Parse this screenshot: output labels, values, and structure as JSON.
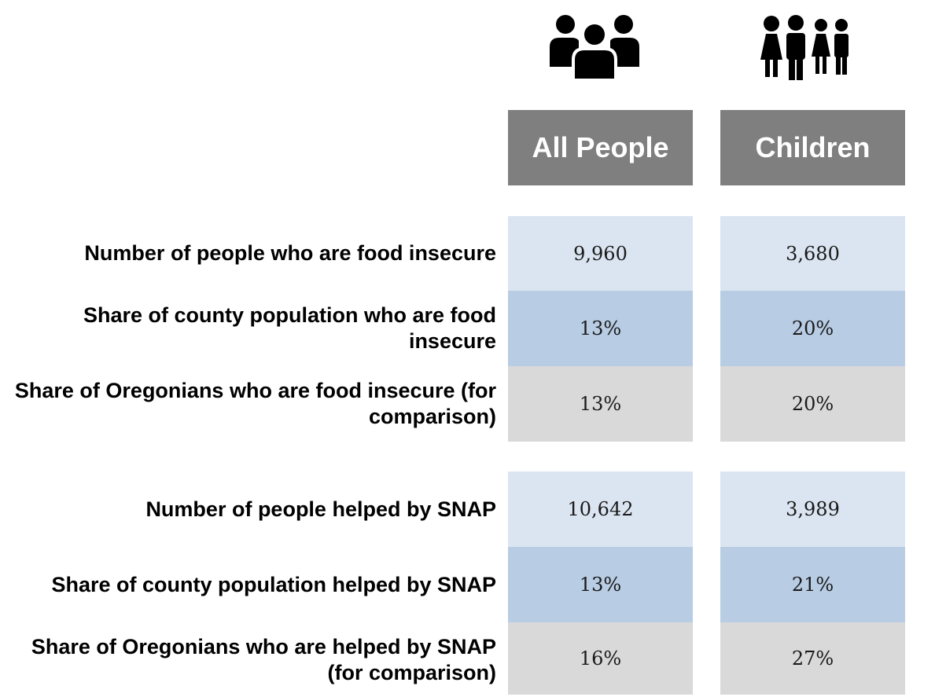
{
  "columns": {
    "all_people": {
      "label": "All People",
      "icon": "group-icon"
    },
    "children": {
      "label": "Children",
      "icon": "children-icon"
    }
  },
  "colors": {
    "header_bg": "#7f7f7f",
    "row_light": "#dbe5f1",
    "row_mid": "#b8cce4",
    "row_grey": "#d9d9d9"
  },
  "sections": [
    {
      "rows": [
        {
          "label": "Number of people who are food insecure",
          "all_people": "9,960",
          "children": "3,680"
        },
        {
          "label": "Share of county population who are food insecure",
          "all_people": "13%",
          "children": "20%"
        },
        {
          "label": "Share of Oregonians who are food insecure (for comparison)",
          "all_people": "13%",
          "children": "20%"
        }
      ]
    },
    {
      "rows": [
        {
          "label": "Number of people helped by SNAP",
          "all_people": "10,642",
          "children": "3,989"
        },
        {
          "label": "Share of county population helped by SNAP",
          "all_people": "13%",
          "children": "21%"
        },
        {
          "label": "Share of Oregonians who are helped by SNAP (for comparison)",
          "all_people": "16%",
          "children": "27%"
        }
      ]
    }
  ]
}
